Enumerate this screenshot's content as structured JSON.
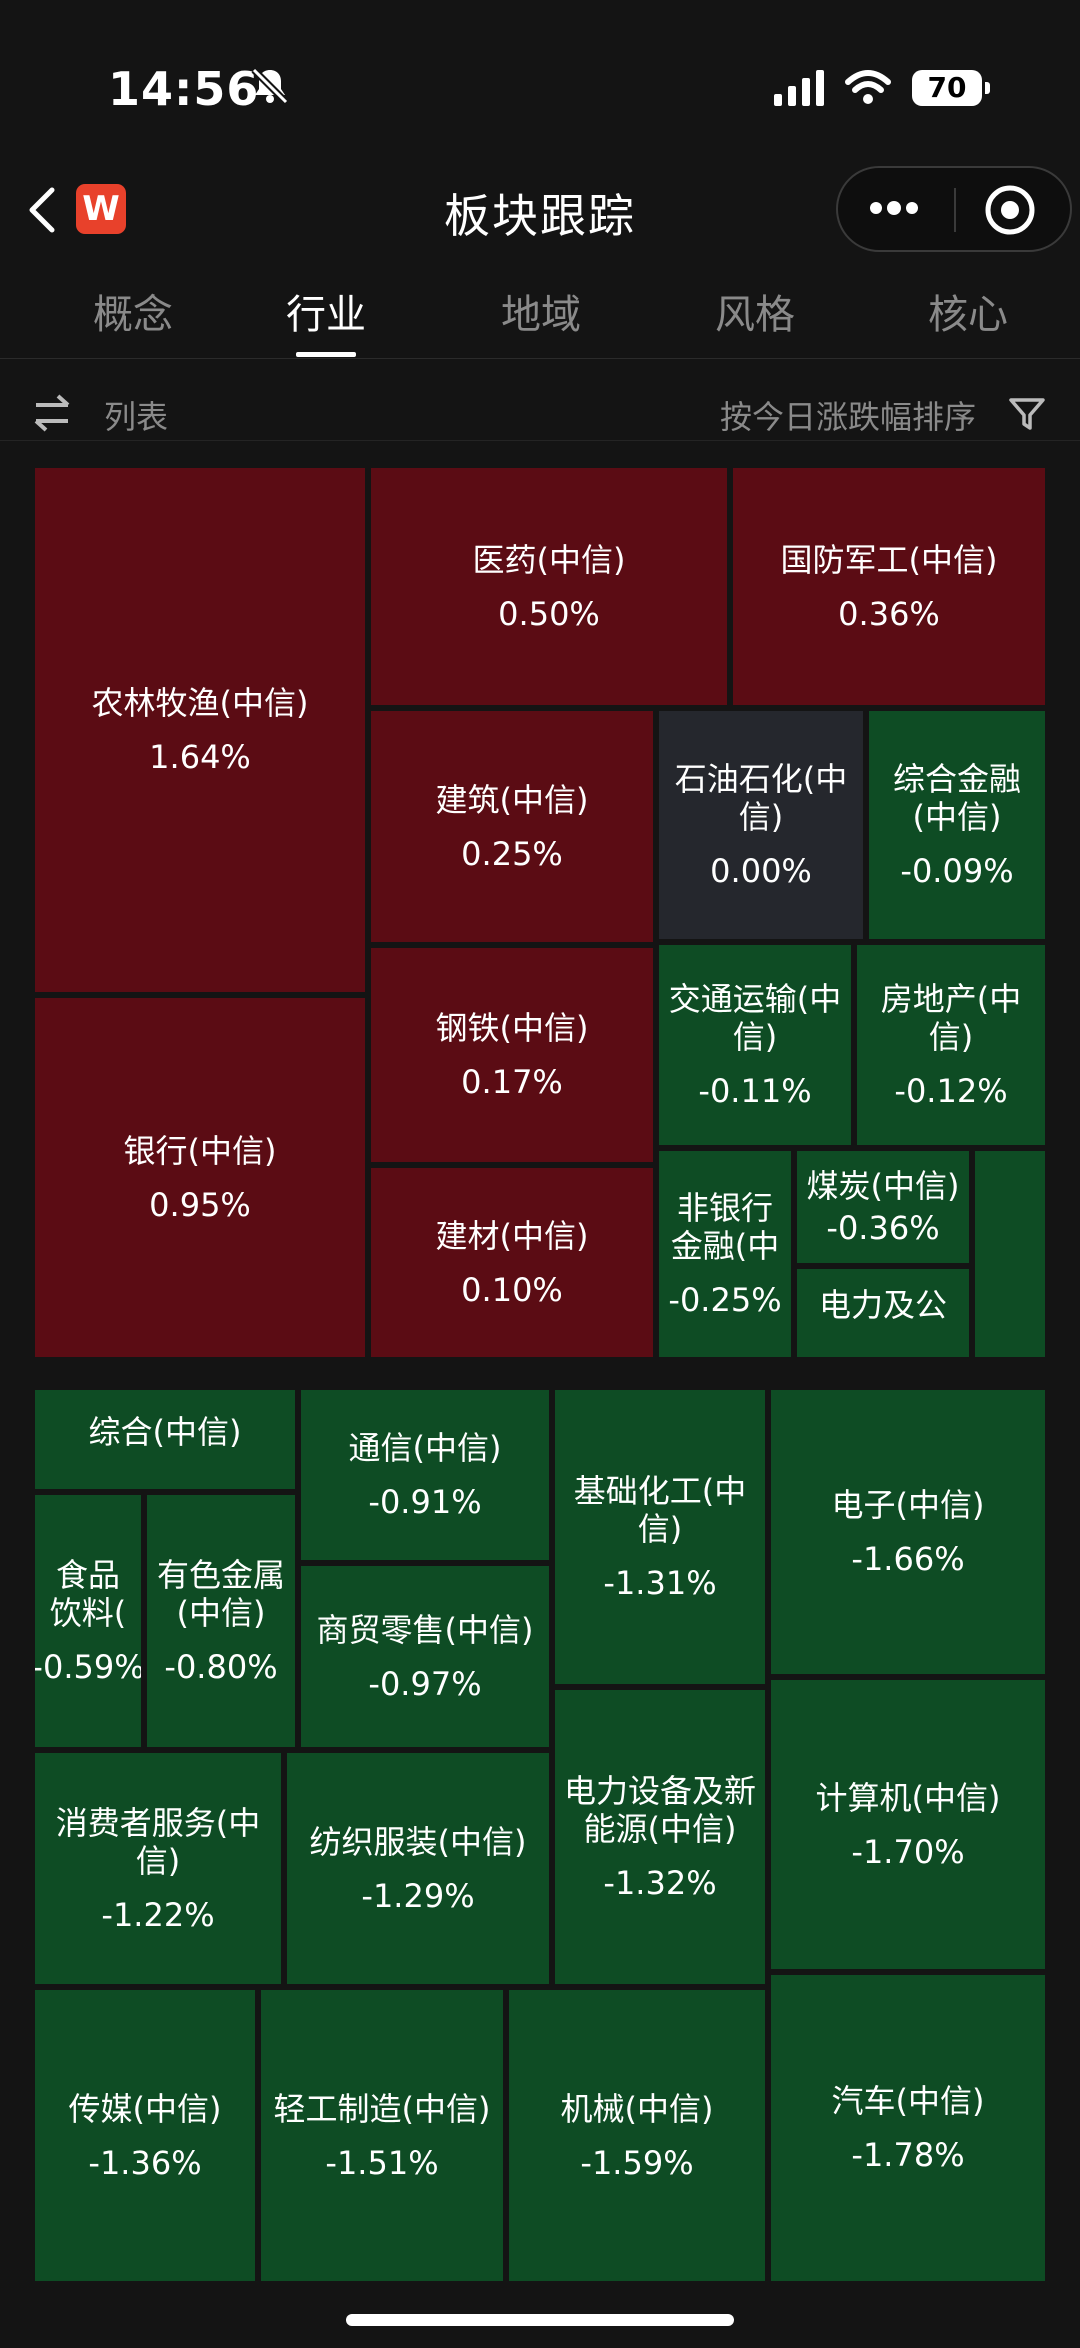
{
  "status": {
    "time": "14:56",
    "battery": "70"
  },
  "nav": {
    "title": "板块跟踪",
    "app_badge": "W"
  },
  "tabs": [
    {
      "label": "概念",
      "active": false
    },
    {
      "label": "行业",
      "active": true
    },
    {
      "label": "地域",
      "active": false
    },
    {
      "label": "风格",
      "active": false
    },
    {
      "label": "核心",
      "active": false
    }
  ],
  "toolbar": {
    "list_label": "列表",
    "sort_label": "按今日涨跌幅排序"
  },
  "colors": {
    "up": "#5b0c14",
    "down": "#0e4c24",
    "flat": "#25272d",
    "background": "#141414"
  },
  "tiles": [
    {
      "name": "农林牧渔(中信)",
      "change": "1.64%"
    },
    {
      "name": "银行(中信)",
      "change": "0.95%"
    },
    {
      "name": "医药(中信)",
      "change": "0.50%"
    },
    {
      "name": "国防军工(中信)",
      "change": "0.36%"
    },
    {
      "name": "建筑(中信)",
      "change": "0.25%"
    },
    {
      "name": "石油石化(中信)",
      "change": "0.00%"
    },
    {
      "name": "综合金融(中信)",
      "change": "-0.09%"
    },
    {
      "name": "钢铁(中信)",
      "change": "0.17%"
    },
    {
      "name": "交通运输(中信)",
      "change": "-0.11%"
    },
    {
      "name": "房地产(中信)",
      "change": "-0.12%"
    },
    {
      "name": "建材(中信)",
      "change": "0.10%"
    },
    {
      "name": "非银行金融(中",
      "change": "-0.25%"
    },
    {
      "name": "煤炭(中信)",
      "change": "-0.36%"
    },
    {
      "name": "电力及公",
      "change": ""
    },
    {
      "name": "",
      "change": ""
    },
    {
      "name": "综合(中信)",
      "change": ""
    },
    {
      "name": "食品饮料(",
      "change": "-0.59%"
    },
    {
      "name": "有色金属(中信)",
      "change": "-0.80%"
    },
    {
      "name": "通信(中信)",
      "change": "-0.91%"
    },
    {
      "name": "商贸零售(中信)",
      "change": "-0.97%"
    },
    {
      "name": "基础化工(中信)",
      "change": "-1.31%"
    },
    {
      "name": "电子(中信)",
      "change": "-1.66%"
    },
    {
      "name": "消费者服务(中信)",
      "change": "-1.22%"
    },
    {
      "name": "纺织服装(中信)",
      "change": "-1.29%"
    },
    {
      "name": "电力设备及新能源(中信)",
      "change": "-1.32%"
    },
    {
      "name": "计算机(中信)",
      "change": "-1.70%"
    },
    {
      "name": "传媒(中信)",
      "change": "-1.36%"
    },
    {
      "name": "轻工制造(中信)",
      "change": "-1.51%"
    },
    {
      "name": "机械(中信)",
      "change": "-1.59%"
    },
    {
      "name": "汽车(中信)",
      "change": "-1.78%"
    }
  ]
}
